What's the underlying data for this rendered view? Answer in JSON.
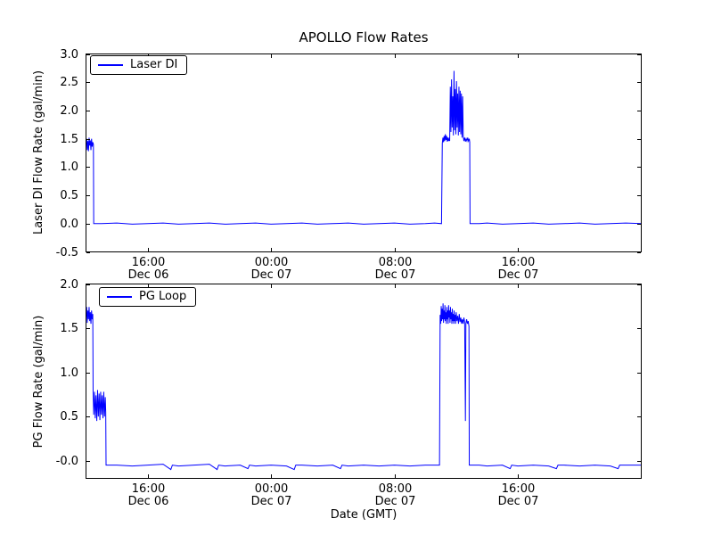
{
  "title": "APOLLO Flow Rates",
  "xlabel": "Date (GMT)",
  "line_color": "#0000ff",
  "chart_data": [
    {
      "type": "line",
      "ylabel": "Laser DI Flow Rate (gal/min)",
      "legend": "Laser DI",
      "ylim": [
        -0.5,
        3.0
      ],
      "ytick_values": [
        3.0,
        2.5,
        2.0,
        1.5,
        1.0,
        0.5,
        0.0,
        -0.5
      ],
      "ytick_labels": [
        "3.0",
        "2.5",
        "2.0",
        "1.5",
        "1.0",
        "0.5",
        "0.0",
        "-0.5"
      ],
      "xlim": [
        0,
        36
      ],
      "xtick_values": [
        4,
        12,
        20,
        28
      ],
      "xtick_labels": [
        "16:00\nDec 06",
        "00:00\nDec 07",
        "08:00\nDec 07",
        "16:00\nDec 07"
      ],
      "grid": false,
      "legend_position": "upper-left",
      "points": [
        [
          0,
          1.4
        ],
        [
          0.04,
          1.5
        ],
        [
          0.08,
          1.3
        ],
        [
          0.12,
          1.46
        ],
        [
          0.16,
          1.28
        ],
        [
          0.2,
          1.52
        ],
        [
          0.24,
          1.38
        ],
        [
          0.28,
          1.47
        ],
        [
          0.32,
          1.3
        ],
        [
          0.36,
          1.5
        ],
        [
          0.4,
          1.36
        ],
        [
          0.44,
          1.44
        ],
        [
          0.48,
          1.4
        ],
        [
          0.5,
          0.0
        ],
        [
          1,
          0
        ],
        [
          2,
          0.01
        ],
        [
          3,
          -0.01
        ],
        [
          4,
          0
        ],
        [
          5,
          0.01
        ],
        [
          6,
          -0.01
        ],
        [
          7,
          0
        ],
        [
          8,
          0.01
        ],
        [
          9,
          -0.01
        ],
        [
          10,
          0
        ],
        [
          11,
          0.01
        ],
        [
          12,
          -0.01
        ],
        [
          13,
          0
        ],
        [
          14,
          0.01
        ],
        [
          15,
          -0.01
        ],
        [
          16,
          0
        ],
        [
          17,
          0.01
        ],
        [
          18,
          -0.01
        ],
        [
          19,
          0
        ],
        [
          20,
          0.01
        ],
        [
          21,
          -0.01
        ],
        [
          22,
          0
        ],
        [
          22.6,
          0.01
        ],
        [
          23.05,
          0
        ],
        [
          23.1,
          1.42
        ],
        [
          23.14,
          1.52
        ],
        [
          23.18,
          1.44
        ],
        [
          23.22,
          1.55
        ],
        [
          23.26,
          1.46
        ],
        [
          23.3,
          1.58
        ],
        [
          23.34,
          1.48
        ],
        [
          23.38,
          1.55
        ],
        [
          23.42,
          1.45
        ],
        [
          23.46,
          1.52
        ],
        [
          23.5,
          1.46
        ],
        [
          23.54,
          1.5
        ],
        [
          23.58,
          1.46
        ],
        [
          23.62,
          2.42
        ],
        [
          23.66,
          1.62
        ],
        [
          23.7,
          2.55
        ],
        [
          23.74,
          1.7
        ],
        [
          23.78,
          2.25
        ],
        [
          23.82,
          1.56
        ],
        [
          23.86,
          2.7
        ],
        [
          23.9,
          1.65
        ],
        [
          23.94,
          2.38
        ],
        [
          23.98,
          1.58
        ],
        [
          24.02,
          2.52
        ],
        [
          24.06,
          1.7
        ],
        [
          24.1,
          2.3
        ],
        [
          24.14,
          1.56
        ],
        [
          24.18,
          2.42
        ],
        [
          24.22,
          1.62
        ],
        [
          24.26,
          2.35
        ],
        [
          24.3,
          1.58
        ],
        [
          24.34,
          2.3
        ],
        [
          24.38,
          1.52
        ],
        [
          24.42,
          2.25
        ],
        [
          24.46,
          1.55
        ],
        [
          24.5,
          1.46
        ],
        [
          24.55,
          1.52
        ],
        [
          24.6,
          1.45
        ],
        [
          24.65,
          1.5
        ],
        [
          24.7,
          1.46
        ],
        [
          24.75,
          1.52
        ],
        [
          24.8,
          1.46
        ],
        [
          24.85,
          1.5
        ],
        [
          24.88,
          1.44
        ],
        [
          24.9,
          0.0
        ],
        [
          25.5,
          0
        ],
        [
          26,
          0.01
        ],
        [
          27,
          -0.01
        ],
        [
          28,
          0
        ],
        [
          29,
          0.01
        ],
        [
          30,
          -0.01
        ],
        [
          31,
          0
        ],
        [
          32,
          0.01
        ],
        [
          33,
          -0.01
        ],
        [
          34,
          0
        ],
        [
          35,
          0.01
        ],
        [
          36,
          0
        ]
      ]
    },
    {
      "type": "line",
      "ylabel": "PG Flow Rate (gal/min)",
      "legend": "PG Loop",
      "ylim": [
        -0.2,
        2.0
      ],
      "ytick_values": [
        2.0,
        1.5,
        1.0,
        0.5,
        0.0
      ],
      "ytick_labels": [
        "2.0",
        "1.5",
        "1.0",
        "0.5",
        "-0.0"
      ],
      "xlim": [
        0,
        36
      ],
      "xtick_values": [
        4,
        12,
        20,
        28
      ],
      "xtick_labels": [
        "16:00\nDec 06",
        "00:00\nDec 07",
        "08:00\nDec 07",
        "16:00\nDec 07"
      ],
      "grid": false,
      "legend_position": "upper-left",
      "points": [
        [
          0,
          1.62
        ],
        [
          0.04,
          1.74
        ],
        [
          0.08,
          1.56
        ],
        [
          0.12,
          1.7
        ],
        [
          0.16,
          1.6
        ],
        [
          0.2,
          1.74
        ],
        [
          0.24,
          1.58
        ],
        [
          0.28,
          1.68
        ],
        [
          0.32,
          1.55
        ],
        [
          0.36,
          1.7
        ],
        [
          0.4,
          1.6
        ],
        [
          0.44,
          1.66
        ],
        [
          0.46,
          0.78
        ],
        [
          0.5,
          0.52
        ],
        [
          0.55,
          0.78
        ],
        [
          0.6,
          0.48
        ],
        [
          0.65,
          0.74
        ],
        [
          0.7,
          0.45
        ],
        [
          0.75,
          0.8
        ],
        [
          0.8,
          0.5
        ],
        [
          0.85,
          0.76
        ],
        [
          0.9,
          0.46
        ],
        [
          0.95,
          0.78
        ],
        [
          1.0,
          0.52
        ],
        [
          1.05,
          0.74
        ],
        [
          1.1,
          0.48
        ],
        [
          1.15,
          0.78
        ],
        [
          1.2,
          0.5
        ],
        [
          1.25,
          0.72
        ],
        [
          1.28,
          0.55
        ],
        [
          1.3,
          -0.05
        ],
        [
          2,
          -0.05
        ],
        [
          3,
          -0.06
        ],
        [
          4,
          -0.05
        ],
        [
          5,
          -0.04
        ],
        [
          5.5,
          -0.1
        ],
        [
          5.6,
          -0.05
        ],
        [
          6,
          -0.06
        ],
        [
          7,
          -0.05
        ],
        [
          8,
          -0.04
        ],
        [
          8.5,
          -0.1
        ],
        [
          8.6,
          -0.05
        ],
        [
          9,
          -0.06
        ],
        [
          10,
          -0.05
        ],
        [
          10.5,
          -0.09
        ],
        [
          10.6,
          -0.05
        ],
        [
          11,
          -0.06
        ],
        [
          12,
          -0.05
        ],
        [
          13,
          -0.06
        ],
        [
          13.5,
          -0.1
        ],
        [
          13.6,
          -0.05
        ],
        [
          14,
          -0.05
        ],
        [
          15,
          -0.06
        ],
        [
          16,
          -0.05
        ],
        [
          16.5,
          -0.09
        ],
        [
          16.6,
          -0.05
        ],
        [
          17,
          -0.06
        ],
        [
          18,
          -0.05
        ],
        [
          19,
          -0.06
        ],
        [
          20,
          -0.05
        ],
        [
          21,
          -0.06
        ],
        [
          22,
          -0.05
        ],
        [
          22.92,
          -0.05
        ],
        [
          22.96,
          1.65
        ],
        [
          23.0,
          1.55
        ],
        [
          23.03,
          1.75
        ],
        [
          23.06,
          1.58
        ],
        [
          23.09,
          1.72
        ],
        [
          23.12,
          1.6
        ],
        [
          23.15,
          1.78
        ],
        [
          23.18,
          1.56
        ],
        [
          23.21,
          1.7
        ],
        [
          23.24,
          1.6
        ],
        [
          23.27,
          1.76
        ],
        [
          23.3,
          1.58
        ],
        [
          23.33,
          1.68
        ],
        [
          23.36,
          1.55
        ],
        [
          23.39,
          1.74
        ],
        [
          23.42,
          1.6
        ],
        [
          23.45,
          1.7
        ],
        [
          23.48,
          1.55
        ],
        [
          23.51,
          1.76
        ],
        [
          23.54,
          1.62
        ],
        [
          23.57,
          1.7
        ],
        [
          23.6,
          1.56
        ],
        [
          23.63,
          1.74
        ],
        [
          23.66,
          1.6
        ],
        [
          23.69,
          1.68
        ],
        [
          23.72,
          1.55
        ],
        [
          23.75,
          1.72
        ],
        [
          23.78,
          1.58
        ],
        [
          23.81,
          1.66
        ],
        [
          23.84,
          1.55
        ],
        [
          23.87,
          1.7
        ],
        [
          23.9,
          1.58
        ],
        [
          23.93,
          1.65
        ],
        [
          23.96,
          1.55
        ],
        [
          24.0,
          1.68
        ],
        [
          24.05,
          1.58
        ],
        [
          24.1,
          1.64
        ],
        [
          24.15,
          1.55
        ],
        [
          24.2,
          1.66
        ],
        [
          24.25,
          1.57
        ],
        [
          24.3,
          1.62
        ],
        [
          24.35,
          1.55
        ],
        [
          24.4,
          1.6
        ],
        [
          24.45,
          1.55
        ],
        [
          24.5,
          1.62
        ],
        [
          24.55,
          1.57
        ],
        [
          24.6,
          0.45
        ],
        [
          24.63,
          1.55
        ],
        [
          24.68,
          1.6
        ],
        [
          24.73,
          1.55
        ],
        [
          24.78,
          1.58
        ],
        [
          24.83,
          1.52
        ],
        [
          24.85,
          -0.05
        ],
        [
          25.5,
          -0.05
        ],
        [
          26,
          -0.06
        ],
        [
          27,
          -0.05
        ],
        [
          27.5,
          -0.09
        ],
        [
          27.6,
          -0.05
        ],
        [
          28,
          -0.06
        ],
        [
          29,
          -0.05
        ],
        [
          30,
          -0.06
        ],
        [
          30.5,
          -0.09
        ],
        [
          30.6,
          -0.05
        ],
        [
          31,
          -0.05
        ],
        [
          32,
          -0.06
        ],
        [
          33,
          -0.05
        ],
        [
          34,
          -0.06
        ],
        [
          34.5,
          -0.09
        ],
        [
          34.6,
          -0.05
        ],
        [
          35,
          -0.05
        ],
        [
          36,
          -0.05
        ]
      ]
    }
  ]
}
